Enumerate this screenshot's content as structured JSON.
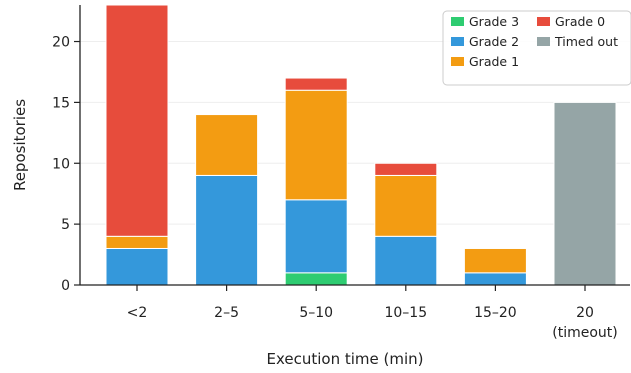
{
  "chart_data": {
    "type": "bar",
    "stacked": true,
    "title": "",
    "xlabel": "Execution time (min)",
    "ylabel": "Repositories",
    "ylim": [
      0,
      23
    ],
    "yticks": [
      0,
      5,
      10,
      15,
      20
    ],
    "grid": "horizontal",
    "legend_position": "top-right",
    "categories": [
      {
        "label": "<2",
        "sublabel": ""
      },
      {
        "label": "2–5",
        "sublabel": ""
      },
      {
        "label": "5–10",
        "sublabel": ""
      },
      {
        "label": "10–15",
        "sublabel": ""
      },
      {
        "label": "15–20",
        "sublabel": ""
      },
      {
        "label": "20",
        "sublabel": "(timeout)"
      }
    ],
    "series": [
      {
        "name": "Grade 3",
        "color": "#2ecc71",
        "values": [
          0,
          0,
          1,
          0,
          0,
          0
        ]
      },
      {
        "name": "Grade 2",
        "color": "#3498db",
        "values": [
          3,
          9,
          6,
          4,
          1,
          0
        ]
      },
      {
        "name": "Grade 1",
        "color": "#f39c12",
        "values": [
          1,
          5,
          9,
          5,
          2,
          0
        ]
      },
      {
        "name": "Grade 0",
        "color": "#e74c3c",
        "values": [
          19,
          0,
          1,
          1,
          0,
          0
        ]
      },
      {
        "name": "Timed out",
        "color": "#95a5a6",
        "values": [
          0,
          0,
          0,
          0,
          0,
          15
        ]
      }
    ],
    "legend_order": [
      "Grade 3",
      "Grade 0",
      "Grade 2",
      "Timed out",
      "Grade 1"
    ]
  }
}
